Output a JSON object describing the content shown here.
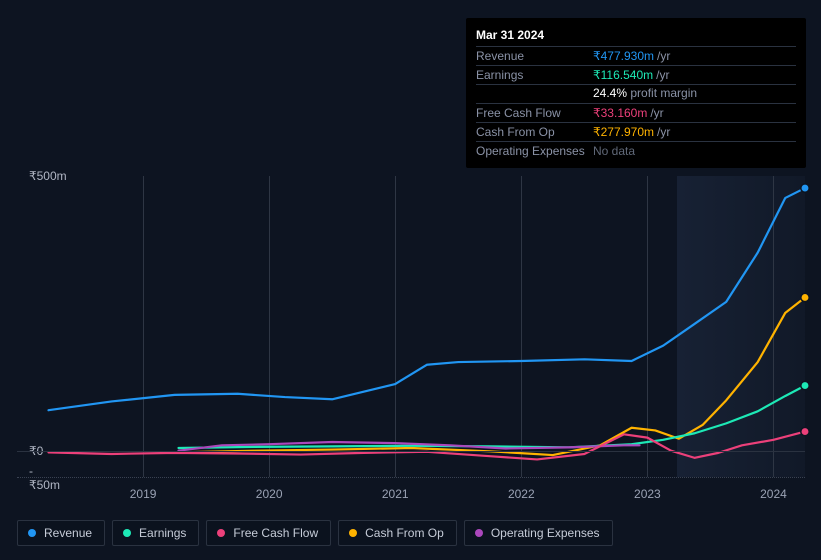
{
  "tooltip": {
    "title": "Mar 31 2024",
    "rows": [
      {
        "label": "Revenue",
        "value": "₹477.930m",
        "unit": "/yr",
        "color": "#2196f3",
        "sub_pct": null,
        "sub_text": null
      },
      {
        "label": "Earnings",
        "value": "₹116.540m",
        "unit": "/yr",
        "color": "#1de9b6",
        "sub_pct": "24.4%",
        "sub_text": "profit margin"
      },
      {
        "label": "Free Cash Flow",
        "value": "₹33.160m",
        "unit": "/yr",
        "color": "#ec407a",
        "sub_pct": null,
        "sub_text": null
      },
      {
        "label": "Cash From Op",
        "value": "₹277.970m",
        "unit": "/yr",
        "color": "#ffb300",
        "sub_pct": null,
        "sub_text": null
      },
      {
        "label": "Operating Expenses",
        "value": "No data",
        "unit": "",
        "color": "#8a92a6",
        "sub_pct": null,
        "sub_text": null,
        "nodata": true
      }
    ]
  },
  "chart": {
    "type": "line",
    "background_color": "#0d1421",
    "grid_color": "#2a3240",
    "vline_color": "#2e3644",
    "future_x_start": 0.838,
    "ylim": [
      -50,
      500
    ],
    "y_ticks": [
      {
        "v": 500,
        "label": "₹500m"
      },
      {
        "v": 0,
        "label": "₹0"
      },
      {
        "v": -50,
        "label": "-₹50m"
      }
    ],
    "x_ticks": [
      {
        "x": 0.16,
        "label": "2019"
      },
      {
        "x": 0.32,
        "label": "2020"
      },
      {
        "x": 0.48,
        "label": "2021"
      },
      {
        "x": 0.64,
        "label": "2022"
      },
      {
        "x": 0.8,
        "label": "2023"
      },
      {
        "x": 0.96,
        "label": "2024"
      }
    ],
    "series": [
      {
        "key": "revenue",
        "label": "Revenue",
        "color": "#2196f3",
        "points": [
          [
            0.04,
            72
          ],
          [
            0.12,
            88
          ],
          [
            0.2,
            100
          ],
          [
            0.28,
            102
          ],
          [
            0.34,
            96
          ],
          [
            0.4,
            92
          ],
          [
            0.48,
            120
          ],
          [
            0.52,
            155
          ],
          [
            0.56,
            160
          ],
          [
            0.64,
            162
          ],
          [
            0.72,
            165
          ],
          [
            0.78,
            162
          ],
          [
            0.82,
            190
          ],
          [
            0.86,
            230
          ],
          [
            0.9,
            270
          ],
          [
            0.94,
            360
          ],
          [
            0.975,
            460
          ],
          [
            1.0,
            478
          ]
        ],
        "end_dot": true
      },
      {
        "key": "cash_from_op",
        "label": "Cash From Op",
        "color": "#ffb300",
        "points": [
          [
            0.205,
            -5
          ],
          [
            0.3,
            -2
          ],
          [
            0.4,
            0
          ],
          [
            0.5,
            3
          ],
          [
            0.6,
            -3
          ],
          [
            0.68,
            -10
          ],
          [
            0.74,
            8
          ],
          [
            0.78,
            40
          ],
          [
            0.81,
            35
          ],
          [
            0.84,
            20
          ],
          [
            0.87,
            45
          ],
          [
            0.9,
            90
          ],
          [
            0.94,
            160
          ],
          [
            0.975,
            250
          ],
          [
            1.0,
            278
          ]
        ],
        "end_dot": true
      },
      {
        "key": "earnings",
        "label": "Earnings",
        "color": "#1de9b6",
        "points": [
          [
            0.205,
            3
          ],
          [
            0.3,
            5
          ],
          [
            0.4,
            6
          ],
          [
            0.5,
            7
          ],
          [
            0.6,
            6
          ],
          [
            0.7,
            4
          ],
          [
            0.78,
            10
          ],
          [
            0.82,
            18
          ],
          [
            0.86,
            30
          ],
          [
            0.9,
            48
          ],
          [
            0.94,
            70
          ],
          [
            0.975,
            98
          ],
          [
            1.0,
            117
          ]
        ],
        "end_dot": true
      },
      {
        "key": "operating_expenses",
        "label": "Operating Expenses",
        "color": "#ab47bc",
        "points": [
          [
            0.205,
            -2
          ],
          [
            0.26,
            8
          ],
          [
            0.32,
            10
          ],
          [
            0.4,
            14
          ],
          [
            0.48,
            12
          ],
          [
            0.55,
            8
          ],
          [
            0.62,
            2
          ],
          [
            0.7,
            4
          ],
          [
            0.77,
            8
          ],
          [
            0.79,
            8
          ]
        ],
        "end_dot": false
      },
      {
        "key": "free_cash_flow",
        "label": "Free Cash Flow",
        "color": "#ec407a",
        "points": [
          [
            0.04,
            -5
          ],
          [
            0.12,
            -8
          ],
          [
            0.2,
            -6
          ],
          [
            0.28,
            -7
          ],
          [
            0.36,
            -9
          ],
          [
            0.44,
            -6
          ],
          [
            0.52,
            -4
          ],
          [
            0.6,
            -12
          ],
          [
            0.66,
            -18
          ],
          [
            0.72,
            -8
          ],
          [
            0.77,
            28
          ],
          [
            0.8,
            22
          ],
          [
            0.83,
            -2
          ],
          [
            0.86,
            -15
          ],
          [
            0.89,
            -6
          ],
          [
            0.92,
            8
          ],
          [
            0.96,
            18
          ],
          [
            1.0,
            33
          ]
        ],
        "end_dot": true
      }
    ]
  },
  "legend": [
    {
      "key": "revenue",
      "label": "Revenue",
      "color": "#2196f3"
    },
    {
      "key": "earnings",
      "label": "Earnings",
      "color": "#1de9b6"
    },
    {
      "key": "free_cash_flow",
      "label": "Free Cash Flow",
      "color": "#ec407a"
    },
    {
      "key": "cash_from_op",
      "label": "Cash From Op",
      "color": "#ffb300"
    },
    {
      "key": "operating_expenses",
      "label": "Operating Expenses",
      "color": "#ab47bc"
    }
  ]
}
